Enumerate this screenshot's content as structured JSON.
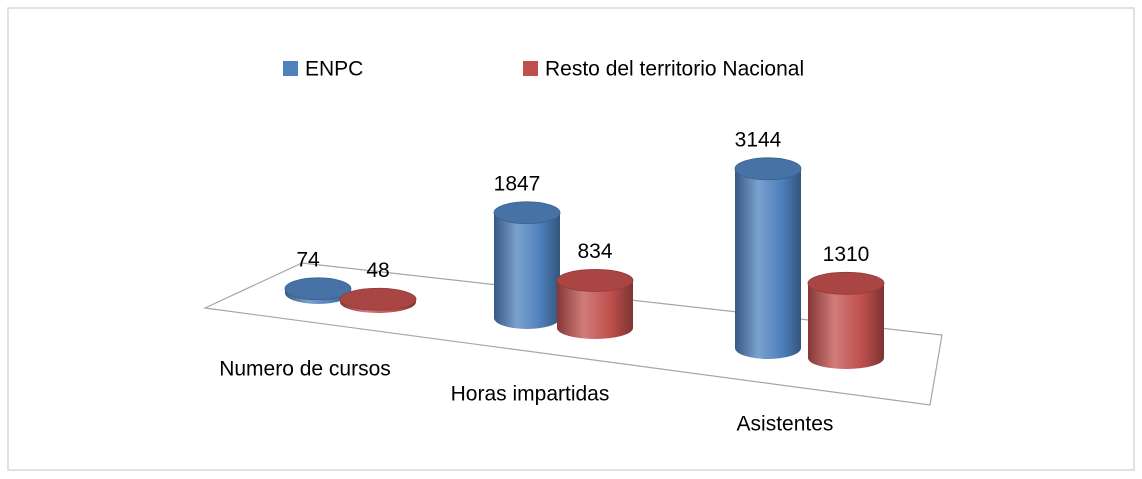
{
  "chart_data": {
    "type": "bar3d",
    "categories": [
      "Numero de cursos",
      "Horas impartidas",
      "Asistentes"
    ],
    "series": [
      {
        "name": "ENPC",
        "color": "#4f81bd",
        "values": [
          74,
          1847,
          3144
        ]
      },
      {
        "name": "Resto del territorio Nacional",
        "color": "#c0504d",
        "values": [
          48,
          834,
          1310
        ]
      }
    ],
    "legend": "top"
  }
}
